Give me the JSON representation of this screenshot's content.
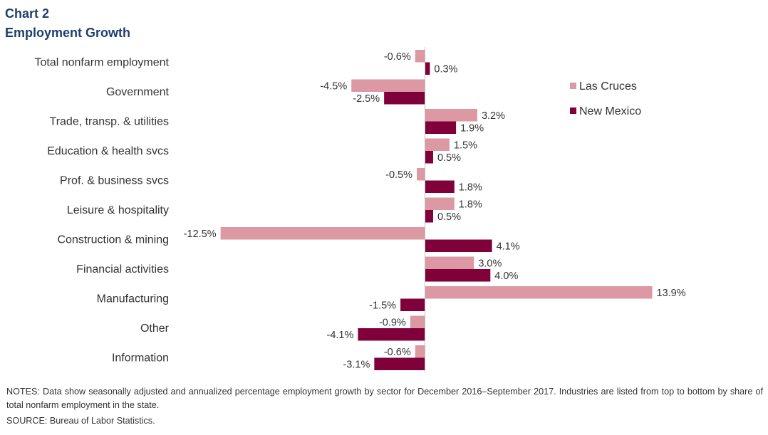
{
  "header": {
    "title_line1": "Chart 2",
    "title_line2": "Employment  Growth"
  },
  "chart_data": {
    "type": "bar",
    "orientation": "horizontal",
    "categories": [
      "Total nonfarm employment",
      "Government",
      "Trade, transp. & utilities",
      "Education & health svcs",
      "Prof. & business svcs",
      "Leisure & hospitality",
      "Construction & mining",
      "Financial activities",
      "Manufacturing",
      "Other",
      "Information"
    ],
    "series": [
      {
        "name": "Las Cruces",
        "color": "#dc99a4",
        "values": [
          -0.6,
          -4.5,
          3.2,
          1.5,
          -0.5,
          1.8,
          -12.5,
          3.0,
          13.9,
          -0.9,
          -0.6
        ],
        "labels": [
          "-0.6%",
          "-4.5%",
          "3.2%",
          "1.5%",
          "-0.5%",
          "1.8%",
          "-12.5%",
          "3.0%",
          "13.9%",
          "-0.9%",
          "-0.6%"
        ]
      },
      {
        "name": "New Mexico",
        "color": "#80003a",
        "values": [
          0.3,
          -2.5,
          1.9,
          0.5,
          1.8,
          0.5,
          4.1,
          4.0,
          -1.5,
          -4.1,
          -3.1
        ],
        "labels": [
          "0.3%",
          "-2.5%",
          "1.9%",
          "0.5%",
          "1.8%",
          "0.5%",
          "4.1%",
          "4.0%",
          "-1.5%",
          "-4.1%",
          "-3.1%"
        ]
      }
    ],
    "value_unit": "%",
    "legend_position": "top-right",
    "grid": false
  },
  "footer": {
    "notes": "NOTES: Data show seasonally adjusted and annualized percentage employment growth by sector for December 2016–September 2017. Industries are listed from top to bottom by share of total nonfarm employment in the state.",
    "source": "SOURCE: Bureau of Labor Statistics."
  }
}
